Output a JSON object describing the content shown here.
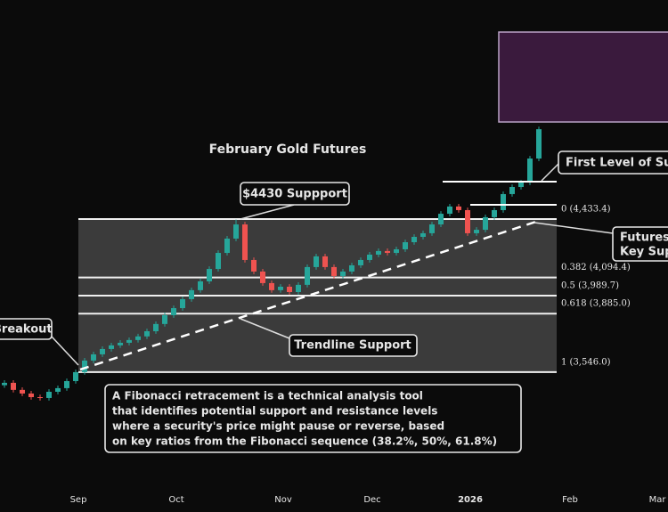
{
  "chart_data": {
    "type": "candlestick",
    "title": "February Gold Futures",
    "x_labels": [
      "Sep",
      "Oct",
      "Nov",
      "Dec",
      "2026",
      "Feb",
      "Mar"
    ],
    "ylim": [
      2890,
      5703
    ],
    "up_color": "#26a69a",
    "down_color": "#ef5350",
    "open": [
      3470,
      3484,
      3443,
      3422,
      3401,
      3396,
      3432,
      3453,
      3494,
      3546,
      3613,
      3649,
      3680,
      3701,
      3716,
      3732,
      3753,
      3783,
      3825,
      3876,
      3917,
      3969,
      4021,
      4072,
      4144,
      4237,
      4320,
      4402,
      4196,
      4129,
      4062,
      4021,
      4041,
      4010,
      4052,
      4155,
      4217,
      4155,
      4103,
      4129,
      4165,
      4196,
      4227,
      4248,
      4237,
      4258,
      4299,
      4330,
      4351,
      4402,
      4464,
      4506,
      4485,
      4351,
      4371,
      4444,
      4485,
      4578,
      4619,
      4645,
      4784
    ],
    "high": [
      3499,
      3499,
      3458,
      3437,
      3416,
      3447,
      3468,
      3509,
      3561,
      3628,
      3664,
      3695,
      3716,
      3731,
      3747,
      3768,
      3798,
      3840,
      3891,
      3932,
      3984,
      4036,
      4087,
      4159,
      4252,
      4335,
      4430,
      4417,
      4211,
      4144,
      4077,
      4056,
      4056,
      4067,
      4170,
      4232,
      4232,
      4170,
      4144,
      4180,
      4211,
      4242,
      4263,
      4263,
      4273,
      4314,
      4345,
      4366,
      4417,
      4479,
      4521,
      4521,
      4500,
      4386,
      4459,
      4500,
      4593,
      4634,
      4660,
      4799,
      4969
    ],
    "low": [
      3455,
      3428,
      3407,
      3386,
      3381,
      3381,
      3417,
      3438,
      3479,
      3531,
      3598,
      3634,
      3665,
      3686,
      3701,
      3717,
      3738,
      3768,
      3810,
      3861,
      3902,
      3954,
      4006,
      4057,
      4129,
      4222,
      4305,
      4181,
      4114,
      4047,
      4006,
      4006,
      3995,
      3995,
      4037,
      4140,
      4140,
      4088,
      4088,
      4114,
      4150,
      4181,
      4212,
      4222,
      4222,
      4243,
      4284,
      4315,
      4336,
      4387,
      4449,
      4470,
      4336,
      4336,
      4356,
      4429,
      4470,
      4563,
      4604,
      4630,
      4769
    ],
    "close": [
      3484,
      3443,
      3422,
      3401,
      3396,
      3432,
      3453,
      3494,
      3546,
      3613,
      3649,
      3680,
      3701,
      3716,
      3732,
      3753,
      3783,
      3825,
      3876,
      3917,
      3969,
      4021,
      4072,
      4144,
      4237,
      4320,
      4402,
      4196,
      4129,
      4062,
      4021,
      4041,
      4010,
      4052,
      4155,
      4217,
      4155,
      4103,
      4129,
      4165,
      4196,
      4227,
      4248,
      4237,
      4258,
      4299,
      4330,
      4351,
      4402,
      4464,
      4506,
      4485,
      4351,
      4371,
      4444,
      4485,
      4578,
      4619,
      4645,
      4784,
      4954
    ],
    "fib_levels": [
      {
        "value": 4433.4,
        "label": "0 (4,433.4)"
      },
      {
        "value": 4094.4,
        "label": "0.382 (4,094.4)"
      },
      {
        "value": 3989.7,
        "label": "0.5 (3,989.7)"
      },
      {
        "value": 3885.0,
        "label": "0.618 (3,885.0)"
      },
      {
        "value": 3546.0,
        "label": "1 (3,546.0)"
      }
    ],
    "annotations": {
      "support_4430": "$4430 Suppport",
      "breakout": "Breakout",
      "trendline": "Trendline Support",
      "first_level": "First Level of Su",
      "futures_key": [
        "Futures",
        "Key Supp"
      ],
      "fibonacci": [
        "A Fibonacci retracement is a technical analysis tool",
        "that identifies potential support and resistance levels",
        "where a security's price might pause or reverse, based",
        "on key ratios from the Fibonacci sequence (38.2%, 50%, 61.8%)"
      ]
    }
  }
}
